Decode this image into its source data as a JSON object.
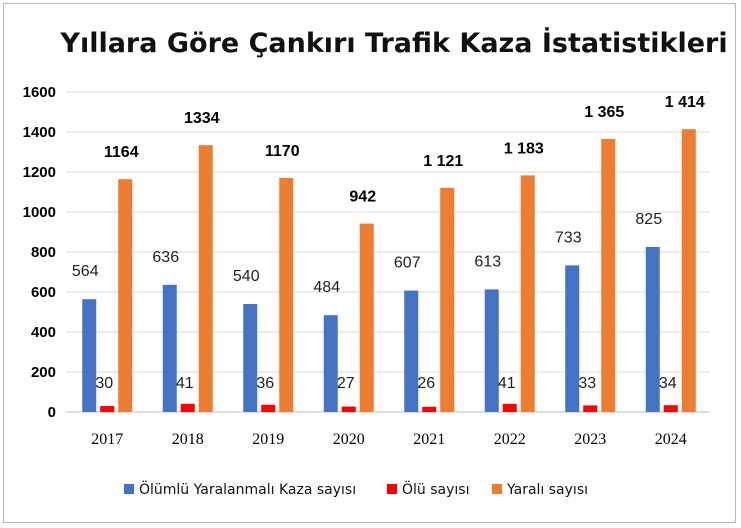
{
  "chart_data": {
    "type": "bar",
    "title": "Yıllara Göre Çankırı Trafik Kaza İstatistikleri",
    "categories": [
      "2017",
      "2018",
      "2019",
      "2020",
      "2021",
      "2022",
      "2023",
      "2024"
    ],
    "ylim": [
      0,
      1600
    ],
    "yticks": [
      "0",
      "200",
      "400",
      "600",
      "800",
      "1000",
      "1200",
      "1400",
      "1600"
    ],
    "grid": true,
    "legend_position": "bottom",
    "series": [
      {
        "name": "Ölümlü Yaralanmalı Kaza sayısı",
        "color": "#4472C4",
        "values": [
          564,
          636,
          540,
          484,
          607,
          613,
          733,
          825
        ],
        "labels": [
          "564",
          "636",
          "540",
          "484",
          "607",
          "613",
          "733",
          "825"
        ]
      },
      {
        "name": "Ölü sayısı",
        "color": "#FF0000",
        "values": [
          30,
          41,
          36,
          27,
          26,
          41,
          33,
          34
        ],
        "labels": [
          "30",
          "41",
          "36",
          "27",
          "26",
          "41",
          "33",
          "34"
        ]
      },
      {
        "name": "Yaralı sayısı",
        "color": "#ED7D31",
        "values": [
          1164,
          1334,
          1170,
          942,
          1121,
          1183,
          1365,
          1414
        ],
        "labels": [
          "1164",
          "1334",
          "1170",
          "942",
          "1 121",
          "1 183",
          "1 365",
          "1 414"
        ]
      }
    ]
  }
}
